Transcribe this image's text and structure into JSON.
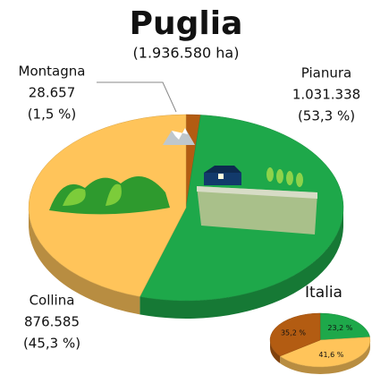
{
  "chart_data": [
    {
      "type": "pie",
      "title": "Puglia",
      "subtitle": "(1.936.580 ha)",
      "categories": [
        "Montagna",
        "Pianura",
        "Collina"
      ],
      "values": [
        28657,
        1031338,
        876585
      ],
      "value_labels": [
        "28.657",
        "1.031.338",
        "876.585"
      ],
      "percents": [
        1.5,
        53.3,
        45.3
      ],
      "percent_labels": [
        "(1,5 %)",
        "(53,3 %)",
        "(45,3 %)"
      ],
      "colors": [
        "#b35c12",
        "#1ea84a",
        "#ffc45a"
      ]
    },
    {
      "type": "pie",
      "title": "Italia",
      "values": [
        23.2,
        41.6,
        35.2
      ],
      "value_labels": [
        "23,2 %",
        "41,6 %",
        "35,2 %"
      ],
      "colors": [
        "#1ea84a",
        "#ffc45a",
        "#b35c12"
      ]
    }
  ]
}
